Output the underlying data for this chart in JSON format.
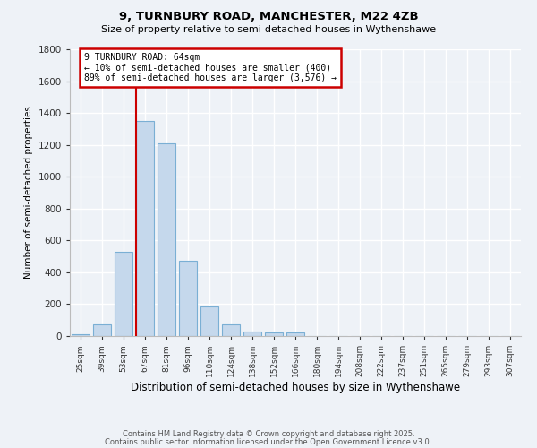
{
  "title": "9, TURNBURY ROAD, MANCHESTER, M22 4ZB",
  "subtitle": "Size of property relative to semi-detached houses in Wythenshawe",
  "xlabel": "Distribution of semi-detached houses by size in Wythenshawe",
  "ylabel": "Number of semi-detached properties",
  "footer1": "Contains HM Land Registry data © Crown copyright and database right 2025.",
  "footer2": "Contains public sector information licensed under the Open Government Licence v3.0.",
  "bar_labels": [
    "25sqm",
    "39sqm",
    "53sqm",
    "67sqm",
    "81sqm",
    "96sqm",
    "110sqm",
    "124sqm",
    "138sqm",
    "152sqm",
    "166sqm",
    "180sqm",
    "194sqm",
    "208sqm",
    "222sqm",
    "237sqm",
    "251sqm",
    "265sqm",
    "279sqm",
    "293sqm",
    "307sqm"
  ],
  "bar_values": [
    10,
    75,
    530,
    1350,
    1210,
    470,
    185,
    75,
    30,
    25,
    20,
    0,
    0,
    0,
    0,
    0,
    0,
    0,
    0,
    0,
    0
  ],
  "bar_color": "#c5d8ec",
  "bar_edge_color": "#7aafd4",
  "ylim": [
    0,
    1800
  ],
  "yticks": [
    0,
    200,
    400,
    600,
    800,
    1000,
    1200,
    1400,
    1600,
    1800
  ],
  "vline_x_index": 3,
  "annotation_text": "9 TURNBURY ROAD: 64sqm\n← 10% of semi-detached houses are smaller (400)\n89% of semi-detached houses are larger (3,576) →",
  "annotation_box_color": "#ffffff",
  "annotation_border_color": "#cc0000",
  "vline_color": "#cc0000",
  "background_color": "#eef2f7",
  "grid_color": "#ffffff",
  "fig_width": 6.0,
  "fig_height": 5.0,
  "dpi": 100
}
